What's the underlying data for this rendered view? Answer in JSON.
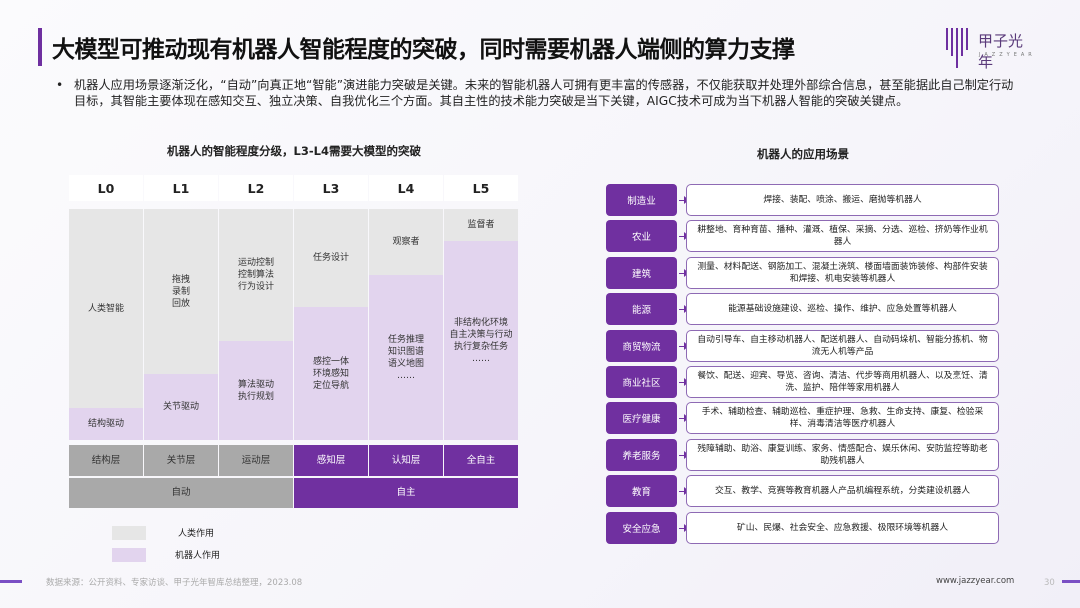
{
  "header": {
    "title": "大模型可推动现有机器人智能程度的突破，同时需要机器人端侧的算力支撑",
    "logo_text": "甲子光年",
    "logo_sub": "JAZZYEAR"
  },
  "bullet": "机器人应用场景逐渐泛化，“自动”向真正地“智能”演进能力突破是关键。未来的智能机器人可拥有更丰富的传感器，不仅能获取并处理外部综合信息，甚至能据此自己制定行动目标，其智能主要体现在感知交互、独立决策、自我优化三个方面。其自主性的技术能力突破是当下关键，AIGC技术可成为当下机器人智能的突破关键点。",
  "left": {
    "title": "机器人的智能程度分级，L3-L4需要大模型的突破",
    "levels": [
      "L0",
      "L1",
      "L2",
      "L3",
      "L4",
      "L5"
    ],
    "human": [
      "人类智能",
      "拖拽\n录制\n回放",
      "运动控制\n控制算法\n行为设计",
      "任务设计",
      "观察者",
      "监督者"
    ],
    "robot": [
      "结构驱动",
      "关节驱动",
      "算法驱动\n执行规划",
      "感控一体\n环境感知\n定位导航",
      "任务推理\n知识图谱\n语义地图\n……",
      "非结构化环境\n自主决策与行动\n执行复杂任务\n……"
    ],
    "layers": [
      "结构层",
      "关节层",
      "运动层",
      "感知层",
      "认知层",
      "全自主"
    ],
    "modes": [
      "自动",
      "自主"
    ],
    "legend": [
      "人类作用",
      "机器人作用"
    ]
  },
  "right": {
    "title": "机器人的应用场景",
    "rows": [
      {
        "cat": "制造业",
        "desc": "焊接、装配、喷涂、搬运、磨抛等机器人"
      },
      {
        "cat": "农业",
        "desc": "耕整地、育种育苗、播种、灌溉、植保、采摘、分选、巡检、挤奶等作业机器人"
      },
      {
        "cat": "建筑",
        "desc": "测量、材料配送、钢筋加工、混凝土浇筑、楼面墙面装饰装修、构部件安装和焊接、机电安装等机器人"
      },
      {
        "cat": "能源",
        "desc": "能源基础设施建设、巡检、操作、维护、应急处置等机器人"
      },
      {
        "cat": "商贸物流",
        "desc": "自动引导车、自主移动机器人、配送机器人、自动码垛机、智能分拣机、物流无人机等产品"
      },
      {
        "cat": "商业社区",
        "desc": "餐饮、配送、迎宾、导览、咨询、清洁、代步等商用机器人、以及烹饪、清洗、监护、陪伴等家用机器人"
      },
      {
        "cat": "医疗健康",
        "desc": "手术、辅助检查、辅助巡检、重症护理、急救、生命支持、康复、检验采样、消毒清洁等医疗机器人"
      },
      {
        "cat": "养老服务",
        "desc": "残障辅助、助浴、康复训练、家务、情感配合、娱乐休闲、安防监控等助老助残机器人"
      },
      {
        "cat": "教育",
        "desc": "交互、教学、竞赛等教育机器人产品机编程系统，分类建设机器人"
      },
      {
        "cat": "安全应急",
        "desc": "矿山、民爆、社会安全、应急救援、极限环境等机器人"
      }
    ]
  },
  "footer": {
    "source": "数据来源：公开资料、专家访谈、甲子光年智库总结整理，2023.08",
    "url": "www.jazzyear.com",
    "page": "30"
  },
  "colors": {
    "accent": "#7030a0",
    "human": "#e6e6e6",
    "robot": "#e2d4ee"
  }
}
